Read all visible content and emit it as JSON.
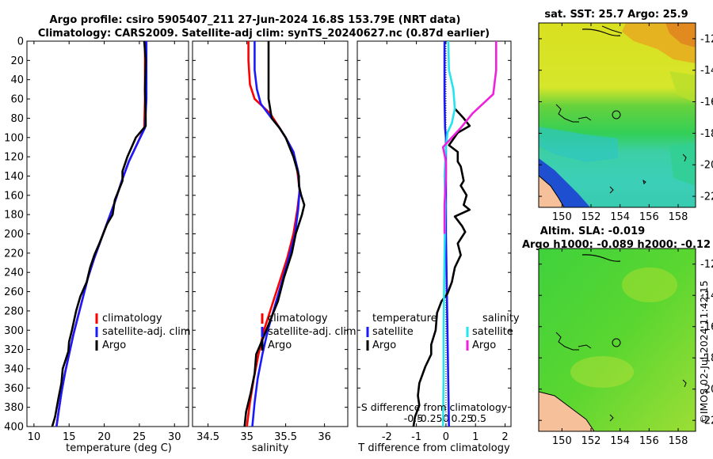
{
  "header": {
    "line1": "Argo profile: csiro 5905407_211 27-Jun-2024 16.8S 153.79E (NRT data)",
    "line2": "Climatology: CARS2009. Satellite-adj clim: synTS_20240627.nc (0.87d earlier)"
  },
  "colors": {
    "climatology": "#ff0000",
    "satellite": "#1a1aff",
    "argo": "#000000",
    "sat_salinity": "#22e5ee",
    "argo_salinity": "#ee22dd"
  },
  "depth_ticks": [
    "0",
    "20",
    "40",
    "60",
    "80",
    "100",
    "120",
    "140",
    "160",
    "180",
    "200",
    "220",
    "240",
    "260",
    "280",
    "300",
    "320",
    "340",
    "360",
    "380",
    "400"
  ],
  "chart_data": [
    {
      "type": "line",
      "id": "temperature",
      "xlabel": "temperature (deg C)",
      "ylabel": "depth",
      "xlim": [
        9,
        32
      ],
      "ylim": [
        400,
        0
      ],
      "xticks": [
        10,
        15,
        20,
        25,
        30
      ],
      "xtick_labels": [
        "10",
        "15",
        "20",
        "25",
        "30"
      ],
      "legend": [
        "climatology",
        "satellite-adj. clim",
        "Argo"
      ],
      "series": [
        {
          "name": "climatology",
          "color": "#ff0000",
          "points": [
            [
              25.8,
              0
            ],
            [
              25.8,
              20
            ],
            [
              25.8,
              60
            ],
            [
              25.7,
              90
            ],
            [
              24.8,
              105
            ],
            [
              23.5,
              125
            ],
            [
              22.5,
              145
            ],
            [
              21.6,
              165
            ],
            [
              20.6,
              185
            ],
            [
              19.6,
              205
            ],
            [
              18.6,
              225
            ],
            [
              17.7,
              245
            ],
            [
              17,
              265
            ],
            [
              16.3,
              285
            ],
            [
              15.6,
              305
            ],
            [
              15,
              325
            ],
            [
              14.4,
              345
            ],
            [
              13.9,
              365
            ],
            [
              13.5,
              385
            ],
            [
              13.2,
              400
            ]
          ]
        },
        {
          "name": "satellite-adj. clim",
          "color": "#1a1aff",
          "points": [
            [
              26,
              0
            ],
            [
              26,
              20
            ],
            [
              26,
              60
            ],
            [
              25.8,
              90
            ],
            [
              24.8,
              105
            ],
            [
              23.5,
              125
            ],
            [
              22.5,
              145
            ],
            [
              21.6,
              165
            ],
            [
              20.6,
              185
            ],
            [
              19.6,
              205
            ],
            [
              18.6,
              225
            ],
            [
              17.7,
              245
            ],
            [
              17,
              265
            ],
            [
              16.3,
              285
            ],
            [
              15.6,
              305
            ],
            [
              15,
              325
            ],
            [
              14.4,
              345
            ],
            [
              13.9,
              365
            ],
            [
              13.5,
              385
            ],
            [
              13.2,
              400
            ]
          ]
        },
        {
          "name": "Argo",
          "color": "#000000",
          "points": [
            [
              25.7,
              0
            ],
            [
              25.9,
              20
            ],
            [
              25.8,
              50
            ],
            [
              25.9,
              80
            ],
            [
              25.9,
              88
            ],
            [
              24.5,
              100
            ],
            [
              23.3,
              120
            ],
            [
              22.6,
              135
            ],
            [
              22.6,
              145
            ],
            [
              21.5,
              165
            ],
            [
              21.2,
              180
            ],
            [
              20.4,
              190
            ],
            [
              19.3,
              210
            ],
            [
              18.6,
              222
            ],
            [
              18,
              235
            ],
            [
              17.5,
              250
            ],
            [
              16.6,
              265
            ],
            [
              16,
              280
            ],
            [
              15.4,
              300
            ],
            [
              15,
              312
            ],
            [
              14.9,
              322
            ],
            [
              14.1,
              340
            ],
            [
              13.9,
              355
            ],
            [
              13.5,
              370
            ],
            [
              13,
              390
            ],
            [
              12.6,
              400
            ]
          ]
        }
      ]
    },
    {
      "type": "line",
      "id": "salinity",
      "xlabel": "salinity",
      "ylabel": "depth",
      "xlim": [
        34.3,
        36.3
      ],
      "ylim": [
        400,
        0
      ],
      "xticks": [
        34.5,
        35,
        35.5,
        36
      ],
      "xtick_labels": [
        "34.5",
        "35",
        "35.5",
        "36"
      ],
      "legend": [
        "climatology",
        "satellite-adj. clim",
        "Argo"
      ],
      "series": [
        {
          "name": "climatology",
          "color": "#ff0000",
          "points": [
            [
              35.02,
              0
            ],
            [
              35.02,
              20
            ],
            [
              35.04,
              45
            ],
            [
              35.1,
              60
            ],
            [
              35.3,
              75
            ],
            [
              35.42,
              90
            ],
            [
              35.5,
              100
            ],
            [
              35.6,
              115
            ],
            [
              35.65,
              135
            ],
            [
              35.68,
              155
            ],
            [
              35.65,
              175
            ],
            [
              35.6,
              200
            ],
            [
              35.52,
              225
            ],
            [
              35.42,
              250
            ],
            [
              35.32,
              275
            ],
            [
              35.22,
              300
            ],
            [
              35.15,
              325
            ],
            [
              35.09,
              350
            ],
            [
              35.04,
              375
            ],
            [
              35,
              400
            ]
          ]
        },
        {
          "name": "satellite-adj. clim",
          "color": "#1a1aff",
          "points": [
            [
              35.1,
              0
            ],
            [
              35.1,
              30
            ],
            [
              35.13,
              50
            ],
            [
              35.18,
              65
            ],
            [
              35.3,
              78
            ],
            [
              35.42,
              90
            ],
            [
              35.5,
              100
            ],
            [
              35.6,
              115
            ],
            [
              35.66,
              135
            ],
            [
              35.68,
              155
            ],
            [
              35.66,
              175
            ],
            [
              35.62,
              200
            ],
            [
              35.54,
              225
            ],
            [
              35.45,
              250
            ],
            [
              35.36,
              275
            ],
            [
              35.27,
              300
            ],
            [
              35.2,
              325
            ],
            [
              35.14,
              350
            ],
            [
              35.1,
              375
            ],
            [
              35.07,
              400
            ]
          ]
        },
        {
          "name": "Argo",
          "color": "#000000",
          "points": [
            [
              35.28,
              0
            ],
            [
              35.28,
              30
            ],
            [
              35.28,
              60
            ],
            [
              35.32,
              80
            ],
            [
              35.42,
              90
            ],
            [
              35.5,
              100
            ],
            [
              35.6,
              120
            ],
            [
              35.67,
              140
            ],
            [
              35.67,
              150
            ],
            [
              35.7,
              160
            ],
            [
              35.74,
              170
            ],
            [
              35.71,
              180
            ],
            [
              35.63,
              200
            ],
            [
              35.58,
              220
            ],
            [
              35.48,
              245
            ],
            [
              35.4,
              270
            ],
            [
              35.3,
              290
            ],
            [
              35.2,
              310
            ],
            [
              35.12,
              325
            ],
            [
              35.1,
              345
            ],
            [
              35.05,
              365
            ],
            [
              34.99,
              385
            ],
            [
              34.97,
              400
            ]
          ]
        }
      ]
    },
    {
      "type": "line",
      "id": "differences",
      "xlabel": "T difference from climatology",
      "x2label": "S difference from climatology",
      "ylabel": "depth",
      "xlim": [
        -3,
        2.2
      ],
      "ylim": [
        400,
        0
      ],
      "xticks": [
        -2,
        -1,
        0,
        1,
        2
      ],
      "xtick_labels": [
        "-2",
        "-1",
        "0",
        "1",
        "2"
      ],
      "x2ticks": [
        -0.5,
        -0.25,
        0,
        0.25,
        0.5
      ],
      "x2tick_labels": [
        "-0.5",
        "-0.25",
        "0",
        "0.25",
        "0.5"
      ],
      "legend_headers": [
        "temperature",
        "salinity"
      ],
      "legend_left": [
        "satellite",
        "Argo"
      ],
      "legend_right": [
        "satellite",
        "Argo"
      ],
      "series": [
        {
          "name": "temperature satellite",
          "color": "#1a1aff",
          "points": [
            [
              -0.05,
              0
            ],
            [
              -0.05,
              30
            ],
            [
              -0.05,
              60
            ],
            [
              -0.03,
              90
            ],
            [
              0,
              100
            ],
            [
              0,
              200
            ],
            [
              0.05,
              300
            ],
            [
              0.1,
              400
            ]
          ]
        },
        {
          "name": "temperature Argo",
          "color": "#000000",
          "points": [
            [
              0.3,
              70
            ],
            [
              0.6,
              80
            ],
            [
              0.8,
              88
            ],
            [
              0.4,
              95
            ],
            [
              0.1,
              108
            ],
            [
              0.4,
              115
            ],
            [
              0.4,
              125
            ],
            [
              0.5,
              130
            ],
            [
              0.6,
              145
            ],
            [
              0.5,
              150
            ],
            [
              0.7,
              160
            ],
            [
              0.6,
              170
            ],
            [
              0.8,
              175
            ],
            [
              0.3,
              182
            ],
            [
              0.55,
              192
            ],
            [
              0.65,
              198
            ],
            [
              0.4,
              210
            ],
            [
              0.5,
              222
            ],
            [
              0.3,
              235
            ],
            [
              0.2,
              250
            ],
            [
              0.05,
              262
            ],
            [
              -0.15,
              270
            ],
            [
              -0.3,
              282
            ],
            [
              -0.35,
              300
            ],
            [
              -0.5,
              315
            ],
            [
              -0.5,
              325
            ],
            [
              -0.7,
              338
            ],
            [
              -0.9,
              355
            ],
            [
              -0.95,
              368
            ],
            [
              -0.9,
              378
            ],
            [
              -1.05,
              390
            ],
            [
              -1.1,
              400
            ]
          ]
        },
        {
          "name": "salinity satellite",
          "color": "#22e5ee",
          "points": [
            [
              0.08,
              0
            ],
            [
              0.1,
              30
            ],
            [
              0.25,
              50
            ],
            [
              0.3,
              70
            ],
            [
              0.2,
              85
            ],
            [
              0.05,
              95
            ],
            [
              0,
              110
            ],
            [
              -0.05,
              140
            ],
            [
              -0.02,
              170
            ],
            [
              -0.05,
              220
            ],
            [
              -0.08,
              300
            ],
            [
              -0.08,
              350
            ],
            [
              -0.1,
              400
            ]
          ]
        },
        {
          "name": "salinity Argo",
          "color": "#ee22dd",
          "points": [
            [
              1.7,
              0
            ],
            [
              1.7,
              30
            ],
            [
              1.6,
              55
            ],
            [
              0.9,
              75
            ],
            [
              0.5,
              90
            ],
            [
              0.2,
              100
            ],
            [
              -0.1,
              110
            ],
            [
              0,
              125
            ],
            [
              0,
              140
            ],
            [
              -0.05,
              170
            ],
            [
              -0.05,
              200
            ]
          ]
        }
      ]
    }
  ],
  "maps": [
    {
      "title": "sat. SST: 25.7 Argo: 25.9",
      "lat_ticks": [
        "-12",
        "-14",
        "-16",
        "-18",
        "-20",
        "-22"
      ],
      "lon_ticks": [
        "150",
        "152",
        "154",
        "156",
        "158"
      ]
    },
    {
      "title_line1": "Altim. SLA: -0.019",
      "title_line2": "Argo h1000: -0.089 h2000: -0.12",
      "lat_ticks": [
        "-12",
        "-14",
        "-16",
        "-18",
        "-20",
        "-22"
      ],
      "lon_ticks": [
        "150",
        "152",
        "154",
        "156",
        "158"
      ]
    }
  ],
  "stamp": "©IMOS 02-Jul-2024 11:42:15"
}
